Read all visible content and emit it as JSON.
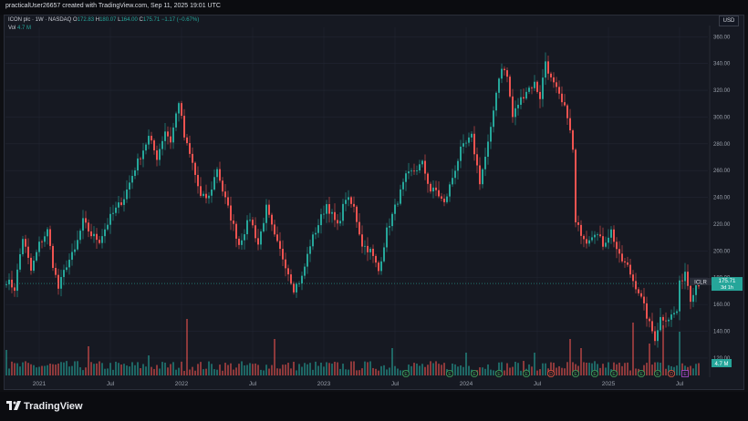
{
  "header": {
    "creator_line": "practicalUser26657 created with TradingView.com, Sep 11, 2025 19:01 UTC"
  },
  "legend": {
    "symbol": "ICON plc · 1W · NASDAQ",
    "o_label": "O",
    "o_value": "172.83",
    "h_label": "H",
    "h_value": "180.07",
    "l_label": "L",
    "l_value": "164.00",
    "c_label": "C",
    "c_value": "175.71",
    "change": "−1.17 (−0.67%)",
    "vol_label": "Vol",
    "vol_value": "4.7 M"
  },
  "footer": {
    "brand": "TradingView"
  },
  "colors": {
    "up": "#26a69a",
    "down": "#ef5350",
    "background": "#161922",
    "price_line": "#26a69a"
  },
  "chart_data": {
    "type": "candlestick",
    "title": "ICON plc · 1W · NASDAQ",
    "currency_button": "USD",
    "ticker_label": "ICLR",
    "last_price": "175.71",
    "countdown": "3d 1h",
    "volume_label": "4.7 M",
    "y_axis_ticks": [
      "120.00",
      "140.00",
      "160.00",
      "180.00",
      "200.00",
      "220.00",
      "240.00",
      "260.00",
      "280.00",
      "300.00",
      "320.00",
      "340.00",
      "360.00"
    ],
    "y_range": [
      107,
      367
    ],
    "x_axis_ticks": [
      "2021",
      "Jul",
      "2022",
      "Jul",
      "2023",
      "Jul",
      "2024",
      "Jul",
      "2025",
      "Jul"
    ],
    "x_tick_weeks": [
      12,
      38,
      64,
      90,
      116,
      142,
      168,
      194,
      220,
      246
    ],
    "price_anchors": [
      [
        0,
        178
      ],
      [
        3,
        172
      ],
      [
        6,
        210
      ],
      [
        9,
        185
      ],
      [
        12,
        205
      ],
      [
        15,
        215
      ],
      [
        17,
        190
      ],
      [
        19,
        172
      ],
      [
        22,
        190
      ],
      [
        25,
        200
      ],
      [
        28,
        222
      ],
      [
        31,
        212
      ],
      [
        34,
        208
      ],
      [
        38,
        225
      ],
      [
        43,
        240
      ],
      [
        47,
        262
      ],
      [
        52,
        285
      ],
      [
        55,
        270
      ],
      [
        58,
        290
      ],
      [
        60,
        282
      ],
      [
        63,
        312
      ],
      [
        65,
        285
      ],
      [
        68,
        265
      ],
      [
        71,
        240
      ],
      [
        74,
        240
      ],
      [
        77,
        262
      ],
      [
        79,
        245
      ],
      [
        82,
        225
      ],
      [
        85,
        205
      ],
      [
        89,
        225
      ],
      [
        92,
        205
      ],
      [
        95,
        232
      ],
      [
        98,
        210
      ],
      [
        102,
        190
      ],
      [
        105,
        172
      ],
      [
        108,
        180
      ],
      [
        111,
        205
      ],
      [
        114,
        220
      ],
      [
        117,
        235
      ],
      [
        121,
        218
      ],
      [
        124,
        240
      ],
      [
        127,
        232
      ],
      [
        130,
        205
      ],
      [
        133,
        200
      ],
      [
        136,
        185
      ],
      [
        139,
        215
      ],
      [
        143,
        238
      ],
      [
        146,
        255
      ],
      [
        149,
        260
      ],
      [
        152,
        265
      ],
      [
        155,
        245
      ],
      [
        157,
        245
      ],
      [
        160,
        235
      ],
      [
        163,
        255
      ],
      [
        166,
        275
      ],
      [
        170,
        285
      ],
      [
        173,
        252
      ],
      [
        175,
        270
      ],
      [
        177,
        290
      ],
      [
        179,
        320
      ],
      [
        181,
        338
      ],
      [
        183,
        330
      ],
      [
        185,
        300
      ],
      [
        187,
        310
      ],
      [
        190,
        320
      ],
      [
        193,
        325
      ],
      [
        195,
        315
      ],
      [
        197,
        342
      ],
      [
        199,
        328
      ],
      [
        201,
        320
      ],
      [
        203,
        310
      ],
      [
        205,
        302
      ],
      [
        207,
        275
      ],
      [
        208,
        220
      ],
      [
        212,
        208
      ],
      [
        215,
        215
      ],
      [
        218,
        205
      ],
      [
        221,
        215
      ],
      [
        224,
        195
      ],
      [
        227,
        188
      ],
      [
        229,
        178
      ],
      [
        231,
        170
      ],
      [
        233,
        158
      ],
      [
        235,
        145
      ],
      [
        237,
        135
      ],
      [
        239,
        150
      ],
      [
        242,
        150
      ],
      [
        245,
        155
      ],
      [
        246,
        175
      ],
      [
        248,
        185
      ],
      [
        250,
        165
      ],
      [
        252,
        175
      ],
      [
        253,
        176
      ]
    ],
    "volume_spikes": [
      [
        0,
        28
      ],
      [
        30,
        32
      ],
      [
        52,
        22
      ],
      [
        66,
        62
      ],
      [
        98,
        40
      ],
      [
        141,
        30
      ],
      [
        168,
        25
      ],
      [
        193,
        25
      ],
      [
        206,
        40
      ],
      [
        210,
        30
      ],
      [
        229,
        58
      ],
      [
        235,
        35
      ],
      [
        240,
        55
      ],
      [
        246,
        48
      ]
    ],
    "event_markers": [
      "E",
      "E",
      "E",
      "E",
      "E",
      "D",
      "E",
      "E",
      "E",
      "E",
      "E",
      "D",
      "E"
    ],
    "x_label": "",
    "y_label": ""
  }
}
